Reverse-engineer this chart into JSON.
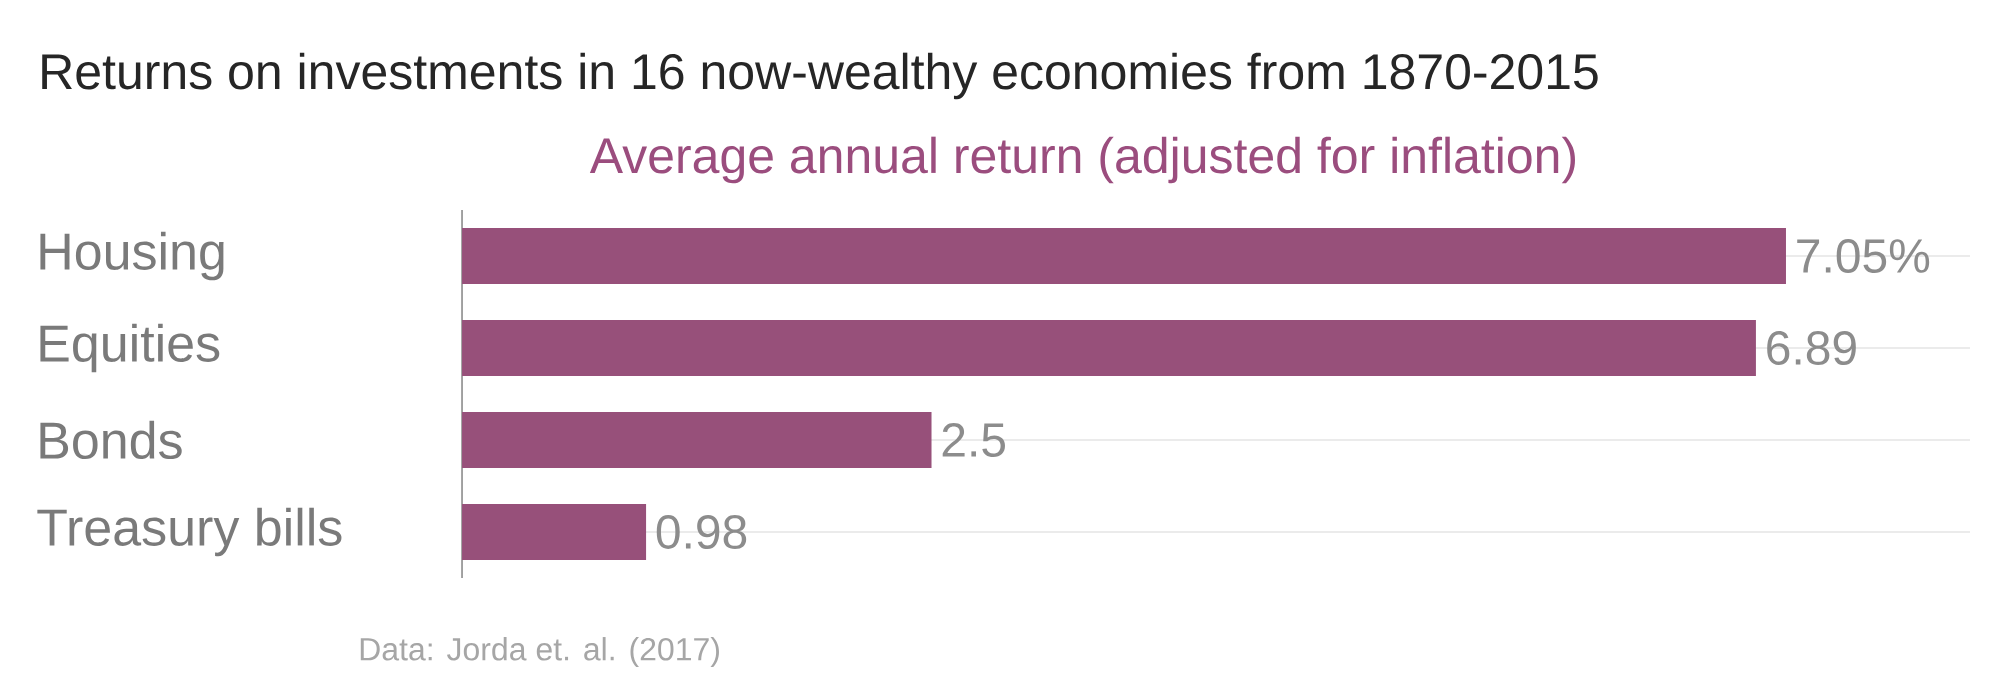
{
  "chart_data": {
    "type": "bar",
    "orientation": "horizontal",
    "title": "Returns on investments in 16 now-wealthy economies from 1870-2015",
    "subtitle": "Average annual return (adjusted for inflation)",
    "categories": [
      "Housing",
      "Equities",
      "Bonds",
      "Treasury bills"
    ],
    "values": [
      7.05,
      6.89,
      2.5,
      0.98
    ],
    "value_labels": [
      "7.05%",
      "6.89",
      "2.5",
      "0.98"
    ],
    "color": "#97507a",
    "grid": "y",
    "annotations": [
      "Data: Jorda et. al. (2017)"
    ]
  }
}
